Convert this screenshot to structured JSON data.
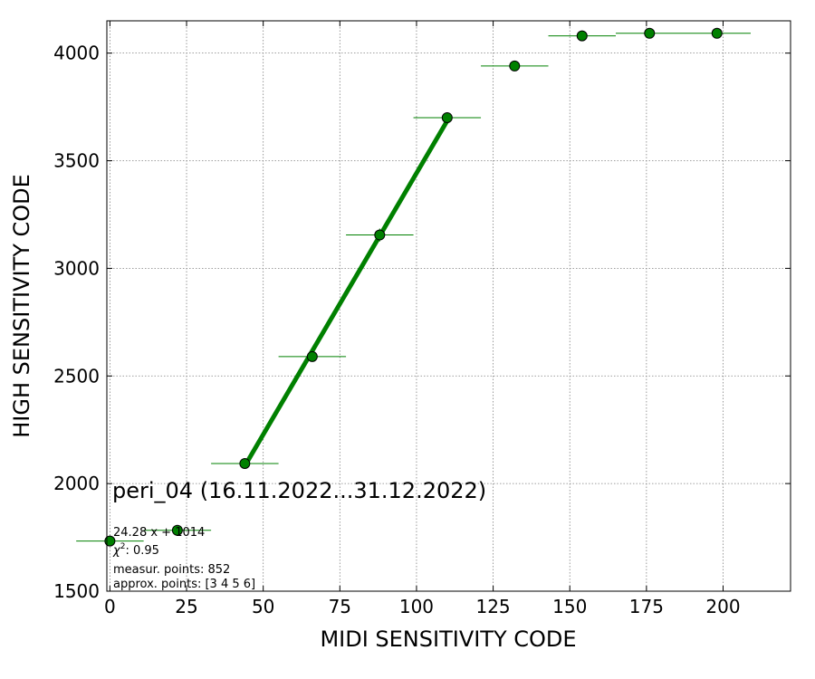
{
  "chart_data": {
    "type": "scatter",
    "title": "peri_04 (16.11.2022...31.12.2022)",
    "xlabel": "MIDI SENSITIVITY CODE",
    "ylabel": "HIGH SENSITIVITY CODE",
    "xlim": [
      -1,
      222
    ],
    "ylim": [
      1500,
      4150
    ],
    "xticks": [
      0,
      25,
      50,
      75,
      100,
      125,
      150,
      175,
      200
    ],
    "yticks": [
      1500,
      2000,
      2500,
      3000,
      3500,
      4000
    ],
    "grid": true,
    "series": [
      {
        "kind": "errorbar-points",
        "color": "#008000",
        "marker_edge": "#000000",
        "points": [
          {
            "x": 0,
            "y": 1733,
            "xerr": 11,
            "yerr": 10
          },
          {
            "x": 22,
            "y": 1783,
            "xerr": 11,
            "yerr": 10
          },
          {
            "x": 44,
            "y": 2093,
            "xerr": 11,
            "yerr": 10
          },
          {
            "x": 66,
            "y": 2590,
            "xerr": 11,
            "yerr": 20
          },
          {
            "x": 88,
            "y": 3155,
            "xerr": 11,
            "yerr": 30
          },
          {
            "x": 110,
            "y": 3700,
            "xerr": 11,
            "yerr": 25
          },
          {
            "x": 132,
            "y": 3940,
            "xerr": 11,
            "yerr": 20
          },
          {
            "x": 154,
            "y": 4080,
            "xerr": 11,
            "yerr": 10
          },
          {
            "x": 176,
            "y": 4092,
            "xerr": 11,
            "yerr": 10
          },
          {
            "x": 198,
            "y": 4092,
            "xerr": 11,
            "yerr": 10
          }
        ]
      },
      {
        "kind": "fit-line",
        "color": "#008000",
        "x": [
          44,
          110
        ],
        "y": [
          2082,
          3685
        ]
      }
    ],
    "annotations": {
      "fit_label": "24.28 x + 1014",
      "chi2_label": "χ",
      "chi2_sup": "2",
      "chi2_value": ": 0.95",
      "measur_points": "measur. points: 852",
      "approx_points": "approx. points: [3 4 5 6]"
    }
  }
}
